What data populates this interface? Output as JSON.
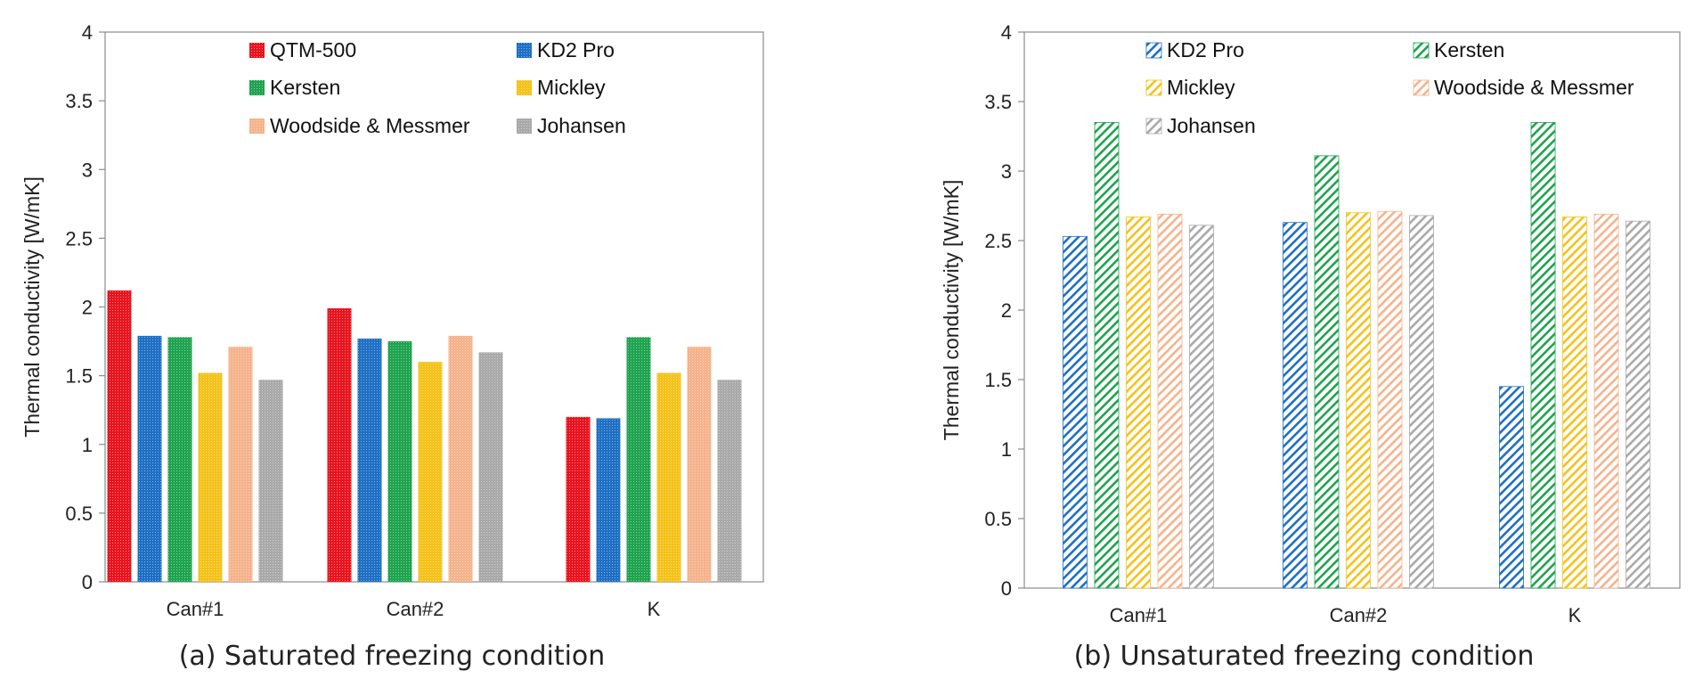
{
  "chart_data": [
    {
      "type": "bar",
      "caption": "(a) Saturated freezing condition",
      "ylabel": "Thermal conductivity [W/mK]",
      "ylim": [
        0,
        4
      ],
      "yticks": [
        "0",
        "0.5",
        "1",
        "1.5",
        "2",
        "2.5",
        "3",
        "3.5",
        "4"
      ],
      "categories": [
        "Can#1",
        "Can#2",
        "K"
      ],
      "legend_position": "top",
      "series": [
        {
          "name": "QTM-500",
          "color": "#e8141e",
          "pattern": "dots",
          "values": [
            2.12,
            1.99,
            1.2
          ]
        },
        {
          "name": "KD2 Pro",
          "color": "#1e6fc4",
          "pattern": "dots",
          "values": [
            1.79,
            1.77,
            1.19
          ]
        },
        {
          "name": "Kersten",
          "color": "#1fa34f",
          "pattern": "dots",
          "values": [
            1.78,
            1.75,
            1.78
          ]
        },
        {
          "name": "Mickley",
          "color": "#f4c21a",
          "pattern": "dots",
          "values": [
            1.52,
            1.6,
            1.52
          ]
        },
        {
          "name": "Woodside & Messmer",
          "color": "#f5b38c",
          "pattern": "dots",
          "values": [
            1.71,
            1.79,
            1.71
          ]
        },
        {
          "name": "Johansen",
          "color": "#a9a9a9",
          "pattern": "dots",
          "values": [
            1.47,
            1.67,
            1.47
          ]
        }
      ]
    },
    {
      "type": "bar",
      "caption": "(b) Unsaturated freezing condition",
      "ylabel": "Thermal conductivity [W/mK]",
      "ylim": [
        0,
        4
      ],
      "yticks": [
        "0",
        "0.5",
        "1",
        "1.5",
        "2",
        "2.5",
        "3",
        "3.5",
        "4"
      ],
      "categories": [
        "Can#1",
        "Can#2",
        "K"
      ],
      "legend_position": "top",
      "series": [
        {
          "name": "KD2 Pro",
          "color": "#1e6fc4",
          "pattern": "hatch",
          "values": [
            2.53,
            2.63,
            1.45
          ]
        },
        {
          "name": "Kersten",
          "color": "#1fa34f",
          "pattern": "hatch",
          "values": [
            3.35,
            3.11,
            3.35
          ]
        },
        {
          "name": "Mickley",
          "color": "#f4c21a",
          "pattern": "hatch",
          "values": [
            2.67,
            2.7,
            2.67
          ]
        },
        {
          "name": "Woodside & Messmer",
          "color": "#f5b38c",
          "pattern": "hatch",
          "values": [
            2.69,
            2.71,
            2.69
          ]
        },
        {
          "name": "Johansen",
          "color": "#a9a9a9",
          "pattern": "hatch",
          "values": [
            2.61,
            2.68,
            2.64
          ]
        }
      ]
    }
  ]
}
